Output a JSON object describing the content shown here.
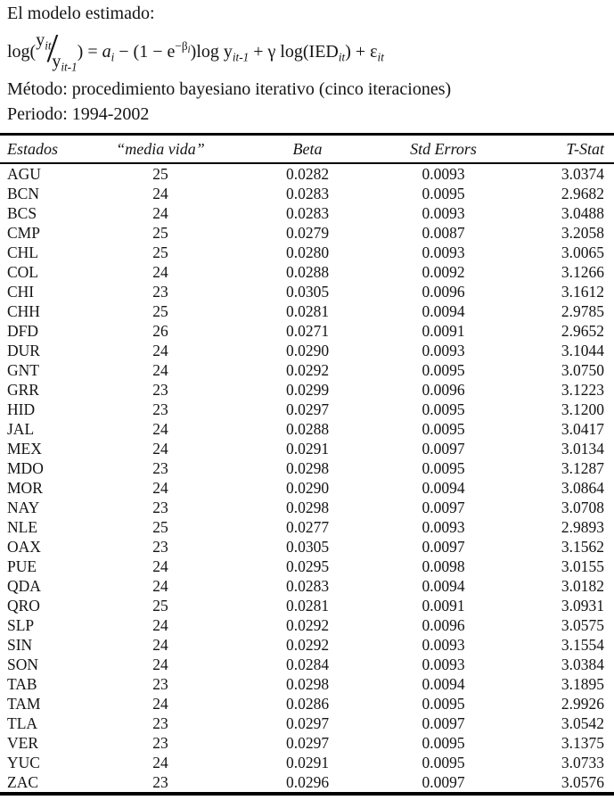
{
  "page": {
    "title": "El modelo estimado:",
    "metodo": "Método: procedimiento bayesiano iterativo (cinco iteraciones)",
    "periodo": "Periodo: 1994-2002"
  },
  "formula": {
    "log_open": "log(",
    "num_base": "y",
    "num_sub": "it",
    "slash": "/",
    "den_base": "y",
    "den_sub": "it-1",
    "equals": ") = ",
    "a_base": "a",
    "a_sub": "i",
    "minus_open": " − (1 − e",
    "exp_base": "−β",
    "exp_sub": "i",
    "close_logy": ")log y",
    "logy_sub": "it-1",
    "plus_gamma": " + γ log(IED",
    "ied_sub": "it",
    "plus_eps": ") + ε",
    "eps_sub": "it"
  },
  "table": {
    "headers": [
      "Estados",
      "“media vida”",
      "Beta",
      "Std Errors",
      "T-Stat"
    ],
    "col_keys": [
      "estado",
      "media-vida",
      "beta",
      "std-errors",
      "t-stat"
    ],
    "rows": [
      [
        "AGU",
        "25",
        "0.0282",
        "0.0093",
        "3.0374"
      ],
      [
        "BCN",
        "24",
        "0.0283",
        "0.0095",
        "2.9682"
      ],
      [
        "BCS",
        "24",
        "0.0283",
        "0.0093",
        "3.0488"
      ],
      [
        "CMP",
        "25",
        "0.0279",
        "0.0087",
        "3.2058"
      ],
      [
        "CHL",
        "25",
        "0.0280",
        "0.0093",
        "3.0065"
      ],
      [
        "COL",
        "24",
        "0.0288",
        "0.0092",
        "3.1266"
      ],
      [
        "CHI",
        "23",
        "0.0305",
        "0.0096",
        "3.1612"
      ],
      [
        "CHH",
        "25",
        "0.0281",
        "0.0094",
        "2.9785"
      ],
      [
        "DFD",
        "26",
        "0.0271",
        "0.0091",
        "2.9652"
      ],
      [
        "DUR",
        "24",
        "0.0290",
        "0.0093",
        "3.1044"
      ],
      [
        "GNT",
        "24",
        "0.0292",
        "0.0095",
        "3.0750"
      ],
      [
        "GRR",
        "23",
        "0.0299",
        "0.0096",
        "3.1223"
      ],
      [
        "HID",
        "23",
        "0.0297",
        "0.0095",
        "3.1200"
      ],
      [
        "JAL",
        "24",
        "0.0288",
        "0.0095",
        "3.0417"
      ],
      [
        "MEX",
        "24",
        "0.0291",
        "0.0097",
        "3.0134"
      ],
      [
        "MDO",
        "23",
        "0.0298",
        "0.0095",
        "3.1287"
      ],
      [
        "MOR",
        "24",
        "0.0290",
        "0.0094",
        "3.0864"
      ],
      [
        "NAY",
        "23",
        "0.0298",
        "0.0097",
        "3.0708"
      ],
      [
        "NLE",
        "25",
        "0.0277",
        "0.0093",
        "2.9893"
      ],
      [
        "OAX",
        "23",
        "0.0305",
        "0.0097",
        "3.1562"
      ],
      [
        "PUE",
        "24",
        "0.0295",
        "0.0098",
        "3.0155"
      ],
      [
        "QDA",
        "24",
        "0.0283",
        "0.0094",
        "3.0182"
      ],
      [
        "QRO",
        "25",
        "0.0281",
        "0.0091",
        "3.0931"
      ],
      [
        "SLP",
        "24",
        "0.0292",
        "0.0096",
        "3.0575"
      ],
      [
        "SIN",
        "24",
        "0.0292",
        "0.0093",
        "3.1554"
      ],
      [
        "SON",
        "24",
        "0.0284",
        "0.0093",
        "3.0384"
      ],
      [
        "TAB",
        "23",
        "0.0298",
        "0.0094",
        "3.1895"
      ],
      [
        "TAM",
        "24",
        "0.0286",
        "0.0095",
        "2.9926"
      ],
      [
        "TLA",
        "23",
        "0.0297",
        "0.0097",
        "3.0542"
      ],
      [
        "VER",
        "23",
        "0.0297",
        "0.0095",
        "3.1375"
      ],
      [
        "YUC",
        "24",
        "0.0291",
        "0.0095",
        "3.0733"
      ],
      [
        "ZAC",
        "23",
        "0.0296",
        "0.0097",
        "3.0576"
      ]
    ]
  },
  "colors": {
    "text": "#141414",
    "rule": "#000000",
    "background": "#ffffff"
  }
}
